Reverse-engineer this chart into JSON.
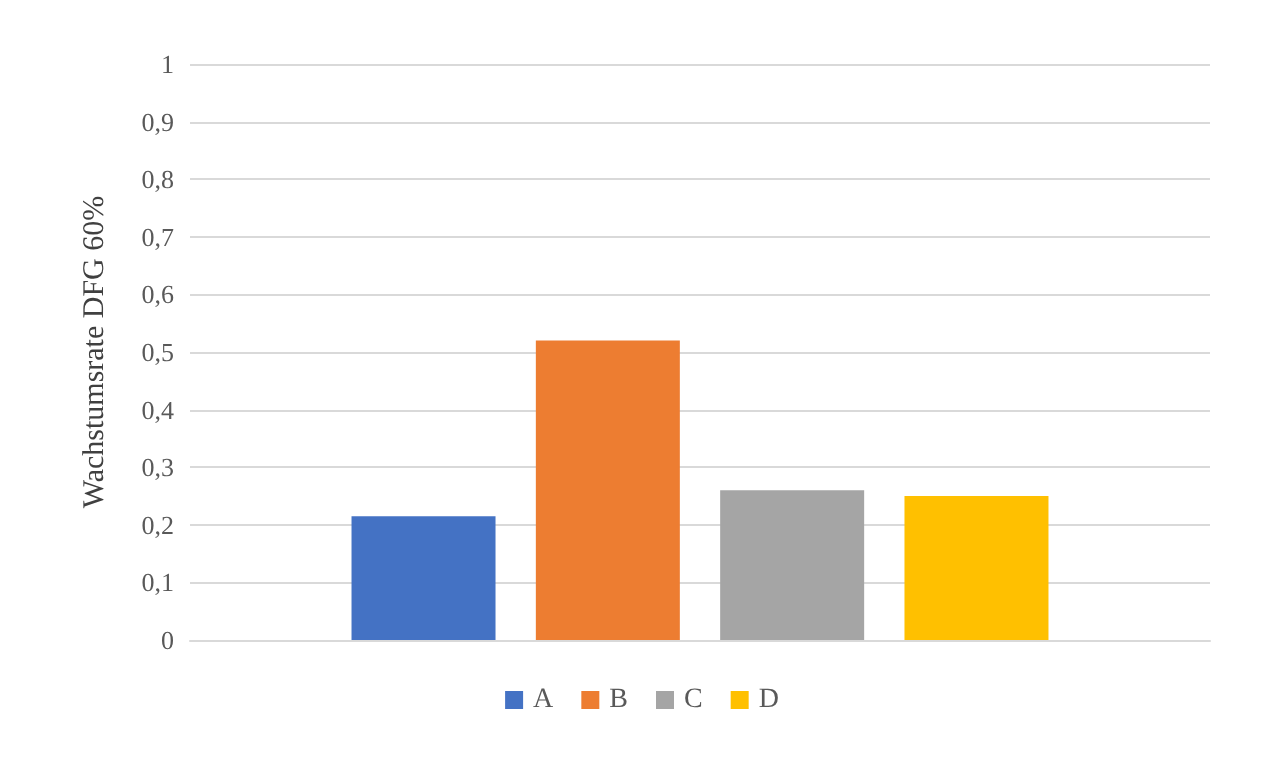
{
  "chart_data": {
    "type": "bar",
    "ylabel": "Wachstumsrate DFG 60%",
    "categories": [
      null
    ],
    "series": [
      {
        "name": "A",
        "color": "#4472c4",
        "values": [
          0.215
        ]
      },
      {
        "name": "B",
        "color": "#ed7d31",
        "values": [
          0.52
        ]
      },
      {
        "name": "C",
        "color": "#a5a5a5",
        "values": [
          0.26
        ]
      },
      {
        "name": "D",
        "color": "#ffc000",
        "values": [
          0.25
        ]
      }
    ],
    "ylim": [
      0,
      1
    ],
    "yticks": [
      0,
      {
        "value": 0.1,
        "label": "0,1"
      },
      {
        "value": 0.2,
        "label": "0,2"
      },
      {
        "value": 0.3,
        "label": "0,3"
      },
      {
        "value": 0.4,
        "label": "0,4"
      },
      {
        "value": 0.5,
        "label": "0,5"
      },
      {
        "value": 0.6,
        "label": "0,6"
      },
      {
        "value": 0.7,
        "label": "0,7"
      },
      {
        "value": 0.8,
        "label": "0,8"
      },
      {
        "value": 0.9,
        "label": "0,9"
      },
      1
    ],
    "grid": "y",
    "legend": "bottom"
  }
}
